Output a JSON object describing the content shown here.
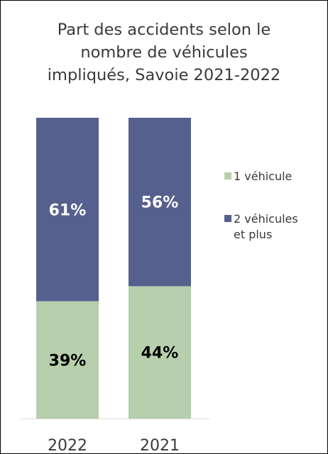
{
  "chart_data": {
    "type": "bar",
    "stacked": true,
    "normalized_percent": true,
    "title": "Part des accidents selon le nombre de véhicules impliqués, Savoie 2021-2022",
    "title_lines": [
      "Part des accidents selon le",
      "nombre de véhicules",
      "impliqués, Savoie 2021-2022"
    ],
    "categories": [
      "2022",
      "2021"
    ],
    "series": [
      {
        "name": "1 véhicule",
        "values": [
          39,
          44
        ],
        "labels": [
          "39%",
          "44%"
        ],
        "color": "#b7cfac",
        "label_color": "#000000"
      },
      {
        "name": "2 véhicules et plus",
        "values": [
          61,
          56
        ],
        "labels": [
          "61%",
          "56%"
        ],
        "color": "#56608e",
        "label_color": "#ffffff"
      }
    ],
    "legend_labels": [
      "1 véhicule",
      "2 véhicules\net plus"
    ],
    "ylim": [
      0,
      100
    ],
    "grid": false,
    "legend_position": "right",
    "baseline_color": "#d9d9d9"
  }
}
